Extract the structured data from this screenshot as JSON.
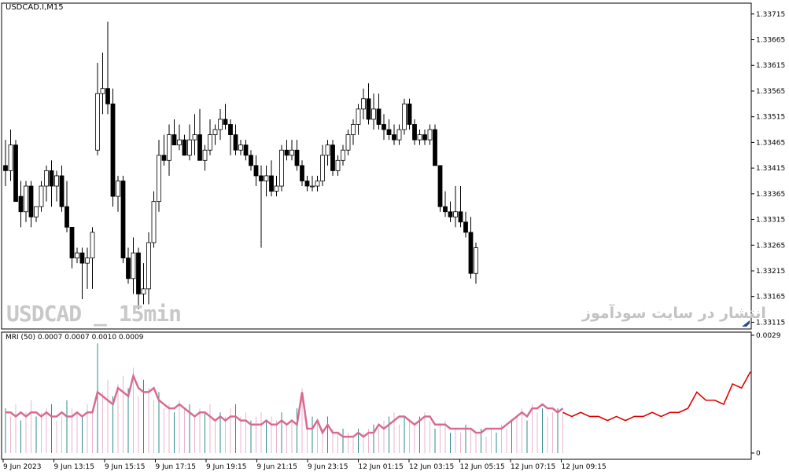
{
  "symbol_label": "USDCAD.I,M15",
  "indicator_label": "MRI (50) 0.0007 0.0007 0.0010 0.0009",
  "watermark_left": "USDCAD _ 15min",
  "watermark_right": "انتشار در سایت سودآموز",
  "corner_icon": "chart-shift-icon",
  "colors": {
    "bull_body": "#ffffff",
    "bear_body": "#000000",
    "mri_pink": "#d96b8f",
    "mri_red": "#e00000",
    "hist_teal": "#2e8b8b",
    "hist_pink": "#e9b5cf"
  },
  "chart_data": [
    {
      "type": "candlestick",
      "price_axis_labels": [
        "1.33715",
        "1.33665",
        "1.33615",
        "1.33565",
        "1.33515",
        "1.33465",
        "1.33415",
        "1.33365",
        "1.33315",
        "1.33265",
        "1.33215",
        "1.33165",
        "1.33115"
      ],
      "ylim": [
        1.33108,
        1.3373
      ],
      "time_axis_labels": [
        "9 Jun 2023",
        "9 Jun 13:15",
        "9 Jun 15:15",
        "9 Jun 17:15",
        "9 Jun 19:15",
        "9 Jun 21:15",
        "9 Jun 23:15",
        "12 Jun 01:15",
        "12 Jun 03:15",
        "12 Jun 05:15",
        "12 Jun 07:15",
        "12 Jun 09:15"
      ],
      "ohlc": [
        [
          1.3342,
          1.3347,
          1.3338,
          1.3341
        ],
        [
          1.3341,
          1.3349,
          1.3339,
          1.3346
        ],
        [
          1.3346,
          1.3347,
          1.3335,
          1.3335
        ],
        [
          1.3336,
          1.3339,
          1.333,
          1.3333
        ],
        [
          1.3333,
          1.3339,
          1.3331,
          1.3338
        ],
        [
          1.3338,
          1.3339,
          1.333,
          1.3332
        ],
        [
          1.3332,
          1.3334,
          1.3331,
          1.3334
        ],
        [
          1.3334,
          1.3339,
          1.3333,
          1.3338
        ],
        [
          1.3338,
          1.3342,
          1.3335,
          1.3341
        ],
        [
          1.3341,
          1.3343,
          1.3334,
          1.3338
        ],
        [
          1.3338,
          1.3341,
          1.3335,
          1.334
        ],
        [
          1.334,
          1.3342,
          1.3333,
          1.3334
        ],
        [
          1.3334,
          1.3339,
          1.3329,
          1.333
        ],
        [
          1.333,
          1.333,
          1.3322,
          1.3324
        ],
        [
          1.3324,
          1.3326,
          1.3323,
          1.3325
        ],
        [
          1.3325,
          1.3326,
          1.3316,
          1.3323
        ],
        [
          1.3323,
          1.3326,
          1.3318,
          1.3324
        ],
        [
          1.3324,
          1.333,
          1.3318,
          1.3329
        ],
        [
          1.3345,
          1.3362,
          1.3344,
          1.3356
        ],
        [
          1.3356,
          1.3364,
          1.3352,
          1.3357
        ],
        [
          1.3357,
          1.337,
          1.3352,
          1.3354
        ],
        [
          1.3354,
          1.3357,
          1.3334,
          1.3336
        ],
        [
          1.3336,
          1.334,
          1.3333,
          1.3339
        ],
        [
          1.3339,
          1.334,
          1.3323,
          1.3324
        ],
        [
          1.3324,
          1.3326,
          1.3319,
          1.332
        ],
        [
          1.332,
          1.3328,
          1.3317,
          1.3325
        ],
        [
          1.3325,
          1.3326,
          1.3314,
          1.3317
        ],
        [
          1.3317,
          1.3323,
          1.3315,
          1.3318
        ],
        [
          1.3318,
          1.3329,
          1.3315,
          1.3327
        ],
        [
          1.3327,
          1.3337,
          1.3326,
          1.3335
        ],
        [
          1.3335,
          1.3347,
          1.3333,
          1.3344
        ],
        [
          1.3344,
          1.3348,
          1.3342,
          1.3343
        ],
        [
          1.3343,
          1.335,
          1.334,
          1.3348
        ],
        [
          1.3348,
          1.3351,
          1.3346,
          1.3346
        ],
        [
          1.3346,
          1.335,
          1.3345,
          1.3347
        ],
        [
          1.3347,
          1.3348,
          1.3344,
          1.3344
        ],
        [
          1.3344,
          1.335,
          1.3343,
          1.3347
        ],
        [
          1.3347,
          1.3352,
          1.3344,
          1.3348
        ],
        [
          1.3348,
          1.3353,
          1.3343,
          1.3343
        ],
        [
          1.3343,
          1.3346,
          1.3341,
          1.3345
        ],
        [
          1.3345,
          1.3351,
          1.3344,
          1.3348
        ],
        [
          1.3348,
          1.335,
          1.3346,
          1.3349
        ],
        [
          1.3349,
          1.3353,
          1.3347,
          1.3351
        ],
        [
          1.3351,
          1.3354,
          1.3349,
          1.335
        ],
        [
          1.335,
          1.3351,
          1.3344,
          1.3348
        ],
        [
          1.3348,
          1.335,
          1.3344,
          1.3345
        ],
        [
          1.3345,
          1.3347,
          1.3344,
          1.3346
        ],
        [
          1.3346,
          1.3347,
          1.3343,
          1.3344
        ],
        [
          1.3344,
          1.3345,
          1.3341,
          1.3342
        ],
        [
          1.3342,
          1.3344,
          1.3338,
          1.334
        ],
        [
          1.334,
          1.3342,
          1.3326,
          1.3339
        ],
        [
          1.3339,
          1.3342,
          1.3336,
          1.334
        ],
        [
          1.334,
          1.3343,
          1.3336,
          1.3337
        ],
        [
          1.3337,
          1.334,
          1.3336,
          1.3338
        ],
        [
          1.3338,
          1.3346,
          1.3337,
          1.3345
        ],
        [
          1.3345,
          1.3347,
          1.3343,
          1.3344
        ],
        [
          1.3344,
          1.3347,
          1.3343,
          1.3345
        ],
        [
          1.3345,
          1.3347,
          1.3341,
          1.3342
        ],
        [
          1.3342,
          1.3343,
          1.3338,
          1.3339
        ],
        [
          1.3339,
          1.334,
          1.3337,
          1.3338
        ],
        [
          1.3338,
          1.334,
          1.3337,
          1.3338
        ],
        [
          1.3338,
          1.334,
          1.3337,
          1.3339
        ],
        [
          1.3339,
          1.3346,
          1.3338,
          1.3344
        ],
        [
          1.3344,
          1.3347,
          1.3342,
          1.3346
        ],
        [
          1.3346,
          1.3347,
          1.334,
          1.3341
        ],
        [
          1.3341,
          1.3344,
          1.334,
          1.3343
        ],
        [
          1.3343,
          1.3346,
          1.3342,
          1.3345
        ],
        [
          1.3345,
          1.3349,
          1.3344,
          1.3348
        ],
        [
          1.3348,
          1.3351,
          1.3346,
          1.335
        ],
        [
          1.335,
          1.3354,
          1.3348,
          1.3353
        ],
        [
          1.3353,
          1.3357,
          1.3351,
          1.3355
        ],
        [
          1.3355,
          1.3358,
          1.335,
          1.3351
        ],
        [
          1.3351,
          1.3356,
          1.3349,
          1.3353
        ],
        [
          1.3353,
          1.3356,
          1.3349,
          1.335
        ],
        [
          1.335,
          1.3352,
          1.3347,
          1.3349
        ],
        [
          1.3349,
          1.3351,
          1.3347,
          1.3348
        ],
        [
          1.3348,
          1.335,
          1.3346,
          1.3347
        ],
        [
          1.3347,
          1.335,
          1.3346,
          1.3349
        ],
        [
          1.3349,
          1.3355,
          1.3348,
          1.3354
        ],
        [
          1.3354,
          1.3355,
          1.3349,
          1.335
        ],
        [
          1.335,
          1.3351,
          1.3346,
          1.3347
        ],
        [
          1.3347,
          1.3349,
          1.3346,
          1.3348
        ],
        [
          1.3348,
          1.3349,
          1.3346,
          1.3347
        ],
        [
          1.3347,
          1.335,
          1.3346,
          1.3349
        ],
        [
          1.3349,
          1.335,
          1.3342,
          1.3342
        ],
        [
          1.3342,
          1.3342,
          1.3333,
          1.3334
        ],
        [
          1.3334,
          1.3337,
          1.3332,
          1.3333
        ],
        [
          1.3333,
          1.3335,
          1.3331,
          1.3332
        ],
        [
          1.3332,
          1.3338,
          1.333,
          1.3333
        ],
        [
          1.3333,
          1.3338,
          1.333,
          1.3331
        ],
        [
          1.3331,
          1.3333,
          1.3328,
          1.3329
        ],
        [
          1.3329,
          1.3332,
          1.332,
          1.3321
        ],
        [
          1.3321,
          1.3327,
          1.3319,
          1.3326
        ]
      ]
    },
    {
      "type": "line",
      "name": "MRI (50)",
      "axis_labels": [
        "0.0029",
        "0"
      ],
      "ylim": [
        0,
        0.0029
      ],
      "mri_values": [
        0.001,
        0.001,
        0.0009,
        0.001,
        0.0009,
        0.001,
        0.001,
        0.0009,
        0.001,
        0.0009,
        0.0009,
        0.001,
        0.0009,
        0.0009,
        0.001,
        0.0009,
        0.001,
        0.001,
        0.0015,
        0.0014,
        0.0013,
        0.0012,
        0.0016,
        0.0015,
        0.0014,
        0.0019,
        0.0016,
        0.0015,
        0.0015,
        0.0016,
        0.0013,
        0.0012,
        0.0011,
        0.0011,
        0.0012,
        0.0011,
        0.001,
        0.0009,
        0.001,
        0.001,
        0.0009,
        0.0008,
        0.0009,
        0.0008,
        0.0009,
        0.0009,
        0.0008,
        0.0008,
        0.0007,
        0.0007,
        0.0007,
        0.0008,
        0.0007,
        0.0007,
        0.0008,
        0.0007,
        0.0008,
        0.0007,
        0.0015,
        0.0006,
        0.0006,
        0.0008,
        0.0005,
        0.0007,
        0.0005,
        0.0005,
        0.0004,
        0.0004,
        0.0004,
        0.0005,
        0.0004,
        0.0005,
        0.0005,
        0.0007,
        0.0006,
        0.0007,
        0.0008,
        0.0009,
        0.0009,
        0.0008,
        0.0007,
        0.0008,
        0.0009,
        0.0009,
        0.0007,
        0.0007,
        0.0007,
        0.0006,
        0.0006,
        0.0006,
        0.0006,
        0.0006,
        0.0005,
        0.0005,
        0.0006,
        0.0006,
        0.0006,
        0.0006,
        0.0007,
        0.0008,
        0.0009,
        0.001,
        0.0009,
        0.0011,
        0.0011,
        0.0012,
        0.0011,
        0.0011,
        0.001,
        0.0011
      ],
      "mri_red_values": [
        0.001,
        0.0009,
        0.001,
        0.0009,
        0.0009,
        0.0008,
        0.0009,
        0.0008,
        0.0009,
        0.0009,
        0.001,
        0.0009,
        0.001,
        0.001,
        0.0011,
        0.0015,
        0.0013,
        0.0013,
        0.0012,
        0.0017,
        0.0016,
        0.002
      ],
      "histogram": [
        0.0011,
        0.0009,
        0.0012,
        0.0008,
        0.001,
        0.0013,
        0.0009,
        0.001,
        0.0011,
        0.0012,
        0.0008,
        0.0009,
        0.0013,
        0.0011,
        0.001,
        0.0009,
        0.0012,
        0.001,
        0.0027,
        0.0015,
        0.0018,
        0.0014,
        0.0017,
        0.0019,
        0.0016,
        0.0021,
        0.0014,
        0.0018,
        0.0016,
        0.0013,
        0.0015,
        0.0011,
        0.0012,
        0.001,
        0.0013,
        0.0011,
        0.0012,
        0.0009,
        0.0011,
        0.001,
        0.0012,
        0.0008,
        0.001,
        0.0009,
        0.0011,
        0.0012,
        0.0009,
        0.001,
        0.0008,
        0.0009,
        0.001,
        0.0008,
        0.0009,
        0.0008,
        0.001,
        0.0007,
        0.0008,
        0.0011,
        0.0016,
        0.0007,
        0.0009,
        0.0008,
        0.0006,
        0.0009,
        0.0006,
        0.0005,
        0.0006,
        0.0005,
        0.0004,
        0.0006,
        0.0005,
        0.0006,
        0.0007,
        0.0006,
        0.0008,
        0.0009,
        0.001,
        0.0007,
        0.0009,
        0.0008,
        0.0007,
        0.0009,
        0.001,
        0.0008,
        0.0006,
        0.0007,
        0.0008,
        0.0005,
        0.0006,
        0.0005,
        0.0007,
        0.0006,
        0.0005,
        0.0006,
        0.0004,
        0.0006,
        0.0005,
        0.0007,
        0.0006,
        0.0008,
        0.0009,
        0.0011,
        0.0008,
        0.0012,
        0.001,
        0.0011,
        0.0009,
        0.001,
        0.0011,
        0.001
      ]
    }
  ]
}
